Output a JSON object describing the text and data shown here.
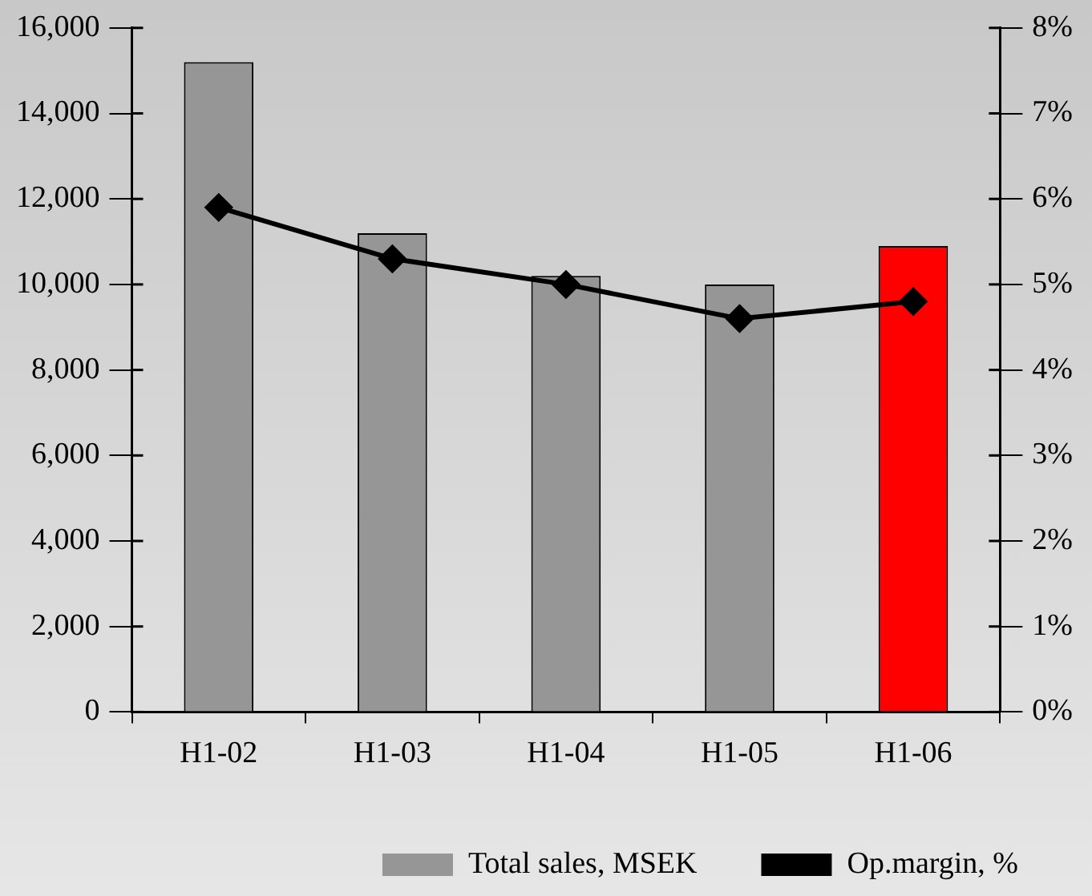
{
  "chart_data": {
    "type": "bar",
    "categories": [
      "H1-02",
      "H1-03",
      "H1-04",
      "H1-05",
      "H1-06"
    ],
    "series": [
      {
        "name": "Total sales, MSEK",
        "color": "#969696",
        "colors": [
          "#969696",
          "#969696",
          "#969696",
          "#969696",
          "#ff0000"
        ],
        "values": [
          15200,
          11200,
          10200,
          10000,
          10900
        ]
      },
      {
        "name": "Op.margin, %",
        "type": "line",
        "axis": "y2",
        "color": "#000000",
        "marker": "diamond",
        "values": [
          5.9,
          5.3,
          5.0,
          4.6,
          4.8
        ]
      }
    ],
    "ylim": [
      0,
      16000
    ],
    "yticks": [
      {
        "value": 0,
        "label": "0"
      },
      {
        "value": 2000,
        "label": "2,000"
      },
      {
        "value": 4000,
        "label": "4,000"
      },
      {
        "value": 6000,
        "label": "6,000"
      },
      {
        "value": 8000,
        "label": "8,000"
      },
      {
        "value": 10000,
        "label": "10,000"
      },
      {
        "value": 12000,
        "label": "12,000"
      },
      {
        "value": 14000,
        "label": "14,000"
      },
      {
        "value": 16000,
        "label": "16,000"
      }
    ],
    "y2lim": [
      0,
      8
    ],
    "y2ticks": [
      {
        "value": 0,
        "label": "0%"
      },
      {
        "value": 1,
        "label": "1%"
      },
      {
        "value": 2,
        "label": "2%"
      },
      {
        "value": 3,
        "label": "3%"
      },
      {
        "value": 4,
        "label": "4%"
      },
      {
        "value": 5,
        "label": "5%"
      },
      {
        "value": 6,
        "label": "6%"
      },
      {
        "value": 7,
        "label": "7%"
      },
      {
        "value": 8,
        "label": "8%"
      }
    ],
    "grid": false,
    "legend": "bottom"
  }
}
